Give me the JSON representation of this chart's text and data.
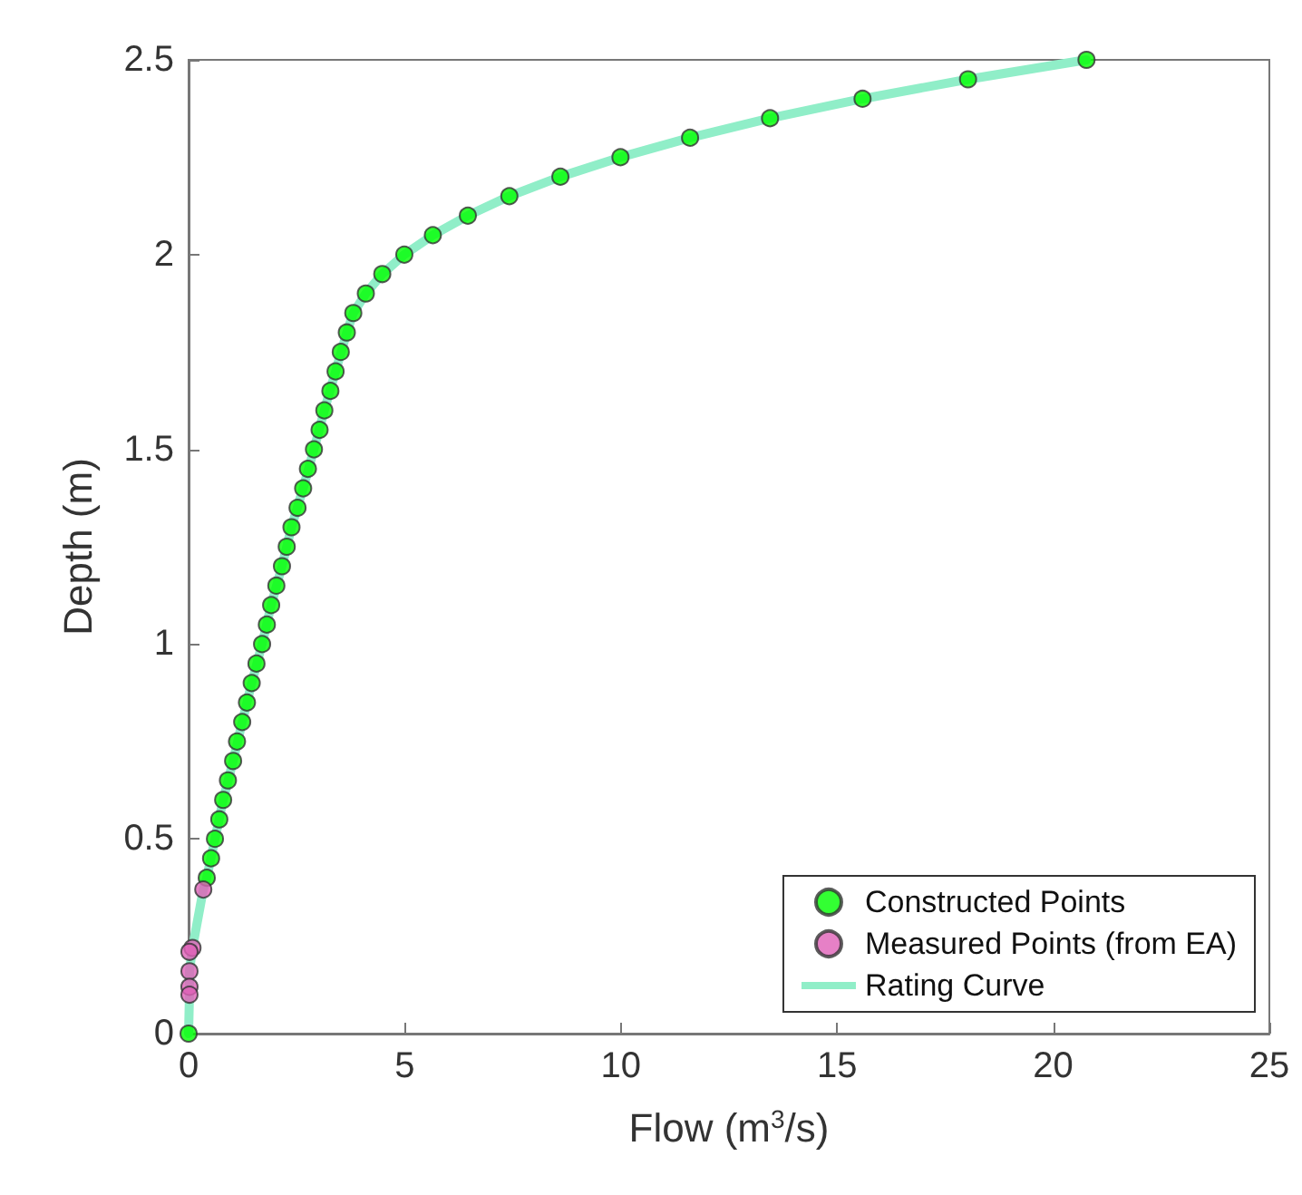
{
  "chart_data": {
    "type": "scatter",
    "xlabel": "Flow (m$^{3}$/s)",
    "ylabel": "Depth (m)",
    "xlim": [
      0,
      25
    ],
    "xticks": [
      0,
      5,
      10,
      15,
      20,
      25
    ],
    "ylim": [
      0,
      2.5
    ],
    "yticks": [
      0,
      0.5,
      1,
      1.5,
      2,
      2.5
    ],
    "grid": false,
    "legend": "bottom right",
    "marker": "circle",
    "series": [
      {
        "name": "Constructed Points",
        "color": "#00ff00",
        "x": [
          0,
          0.42,
          0.52,
          0.61,
          0.71,
          0.8,
          0.91,
          1.03,
          1.12,
          1.24,
          1.35,
          1.46,
          1.57,
          1.7,
          1.81,
          1.91,
          2.03,
          2.16,
          2.27,
          2.38,
          2.52,
          2.65,
          2.76,
          2.9,
          3.03,
          3.14,
          3.28,
          3.4,
          3.52,
          3.66,
          3.81,
          4.1,
          4.48,
          4.99,
          5.65,
          6.46,
          7.42,
          8.6,
          9.99,
          11.6,
          13.45,
          15.59,
          18.03,
          20.77
        ],
        "values": [
          0,
          0.4,
          0.45,
          0.5,
          0.55,
          0.6,
          0.65,
          0.7,
          0.75,
          0.8,
          0.85,
          0.9,
          0.95,
          1.0,
          1.05,
          1.1,
          1.15,
          1.2,
          1.25,
          1.3,
          1.35,
          1.4,
          1.45,
          1.5,
          1.55,
          1.6,
          1.65,
          1.7,
          1.75,
          1.8,
          1.85,
          1.9,
          1.95,
          2.0,
          2.05,
          2.1,
          2.15,
          2.2,
          2.25,
          2.3,
          2.35,
          2.4,
          2.45,
          2.5
        ]
      },
      {
        "name": "Measured Points (from EA)",
        "color": "#e060b8",
        "x": [
          0.34,
          0.09,
          0.02,
          0.02,
          0.02,
          0.02
        ],
        "values": [
          0.37,
          0.22,
          0.21,
          0.16,
          0.12,
          0.1
        ]
      },
      {
        "name": "Rating Curve",
        "type": "line",
        "marker": "none",
        "color": "#90eec8",
        "x": [
          0,
          0.02,
          0.02,
          0.09,
          0.34,
          0.42,
          0.61,
          0.8,
          1.03,
          1.24,
          1.46,
          1.7,
          1.91,
          2.16,
          2.38,
          2.65,
          2.9,
          3.14,
          3.4,
          3.66,
          3.81,
          4.1,
          4.48,
          4.99,
          5.65,
          6.46,
          7.42,
          8.6,
          9.99,
          11.6,
          13.45,
          15.59,
          18.03,
          20.77
        ],
        "values": [
          0,
          0.1,
          0.16,
          0.22,
          0.37,
          0.4,
          0.5,
          0.6,
          0.7,
          0.8,
          0.9,
          1.0,
          1.1,
          1.2,
          1.3,
          1.4,
          1.5,
          1.6,
          1.7,
          1.8,
          1.85,
          1.9,
          1.95,
          2.0,
          2.05,
          2.1,
          2.15,
          2.2,
          2.25,
          2.3,
          2.35,
          2.4,
          2.45,
          2.5
        ]
      }
    ]
  }
}
